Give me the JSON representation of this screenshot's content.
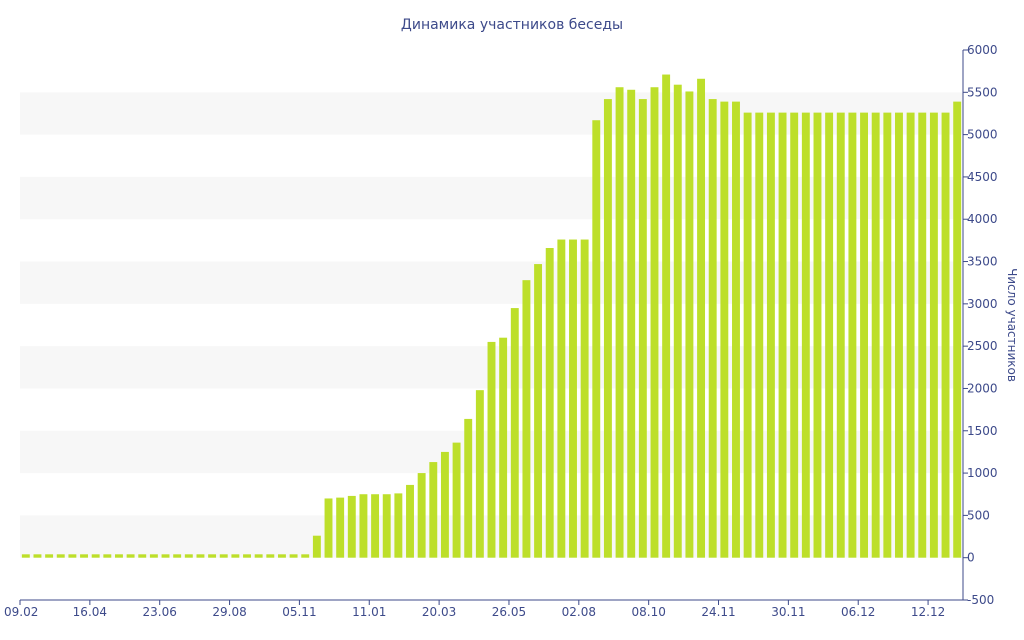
{
  "chart_data": {
    "type": "bar",
    "title": "Динамика участников беседы",
    "xlabel": "",
    "ylabel": "Число участников",
    "ylim": [
      -500,
      6000
    ],
    "yticks": [
      -500,
      0,
      500,
      1000,
      1500,
      2000,
      2500,
      3000,
      3500,
      4000,
      4500,
      5000,
      5500,
      6000
    ],
    "grid": "alternating horizontal bands",
    "legend": "none",
    "colors": {
      "bar": "#bddf2a",
      "band": "#f7f7f7",
      "axis": "#3d4a8a"
    },
    "x_tick_labels": [
      {
        "index": 0,
        "label": "09.02"
      },
      {
        "index": 6,
        "label": "16.04"
      },
      {
        "index": 12,
        "label": "23.06"
      },
      {
        "index": 18,
        "label": "29.08"
      },
      {
        "index": 24,
        "label": "05.11"
      },
      {
        "index": 30,
        "label": "11.01"
      },
      {
        "index": 36,
        "label": "20.03"
      },
      {
        "index": 42,
        "label": "26.05"
      },
      {
        "index": 48,
        "label": "02.08"
      },
      {
        "index": 54,
        "label": "08.10"
      },
      {
        "index": 60,
        "label": "24.11"
      },
      {
        "index": 66,
        "label": "30.11"
      },
      {
        "index": 72,
        "label": "06.12"
      },
      {
        "index": 78,
        "label": "12.12"
      }
    ],
    "values": [
      40,
      40,
      40,
      40,
      40,
      40,
      40,
      40,
      40,
      40,
      40,
      40,
      40,
      40,
      40,
      40,
      40,
      40,
      40,
      40,
      40,
      40,
      40,
      40,
      40,
      260,
      700,
      710,
      730,
      750,
      750,
      750,
      760,
      860,
      1000,
      1130,
      1250,
      1360,
      1640,
      1980,
      2550,
      2600,
      2950,
      3280,
      3470,
      3660,
      3760,
      3760,
      3760,
      5170,
      5420,
      5560,
      5530,
      5420,
      5560,
      5710,
      5590,
      5510,
      5660,
      5420,
      5390,
      5390,
      5260,
      5260,
      5260,
      5260,
      5260,
      5260,
      5260,
      5260,
      5260,
      5260,
      5260,
      5260,
      5260,
      5260,
      5260,
      5260,
      5260,
      5260,
      5390
    ]
  }
}
